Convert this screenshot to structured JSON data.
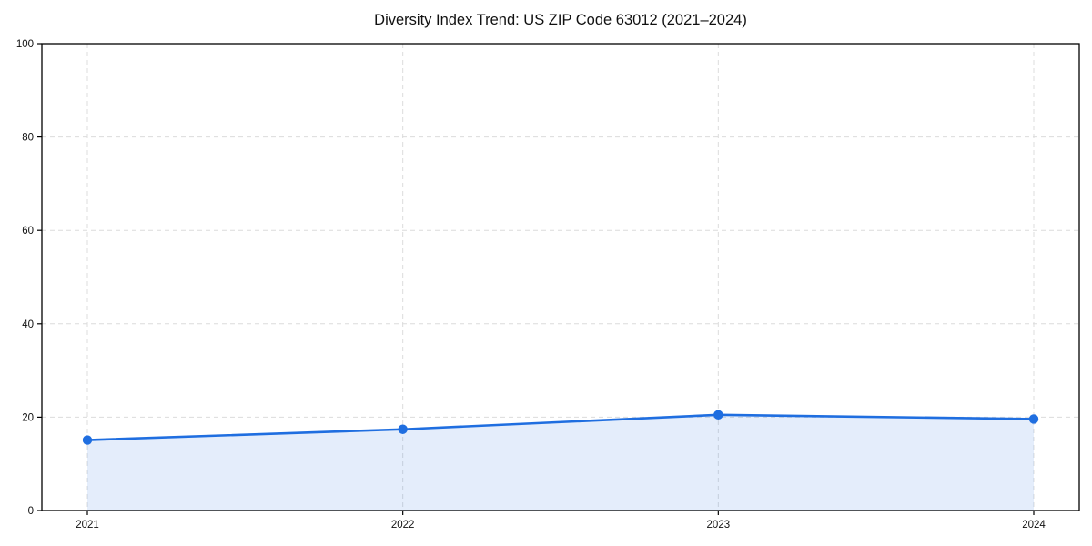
{
  "chart_data": {
    "type": "area",
    "title": "Diversity Index Trend: US ZIP Code 63012 (2021–2024)",
    "categories": [
      "2021",
      "2022",
      "2023",
      "2024"
    ],
    "series": [
      {
        "name": "Diversity Index",
        "values": [
          15.1,
          17.4,
          20.5,
          19.6
        ]
      }
    ],
    "xlabel": "",
    "ylabel": "",
    "ylim": [
      0,
      100
    ],
    "yticks": [
      0,
      20,
      40,
      60,
      80,
      100
    ],
    "grid": true,
    "grid_style": "dashed",
    "legend": "none",
    "colors": {
      "line": "#1f6ee0",
      "marker": "#1f6ee0",
      "fill": "#1f6ee0",
      "fill_opacity": "0.12",
      "grid": "#dcdcdc",
      "axis": "#000000",
      "text": "#111111",
      "background": "#ffffff"
    }
  }
}
